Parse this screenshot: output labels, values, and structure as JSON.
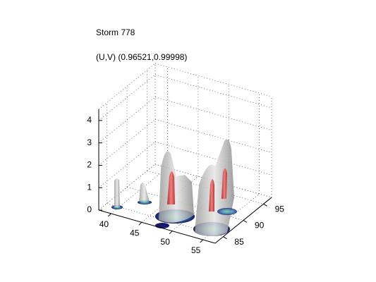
{
  "chart_data": {
    "type": "isosurface",
    "title": "Storm 778",
    "subtitle": "(U,V) (0.96521,0.99998)",
    "xlim": [
      38,
      57
    ],
    "ylim": [
      83,
      97
    ],
    "zlim": [
      0,
      4.5
    ],
    "xticks": [
      40,
      45,
      50,
      55
    ],
    "yticks": [
      85,
      90,
      95
    ],
    "zticks": [
      0,
      1,
      2,
      3,
      4
    ],
    "grid": true
  }
}
